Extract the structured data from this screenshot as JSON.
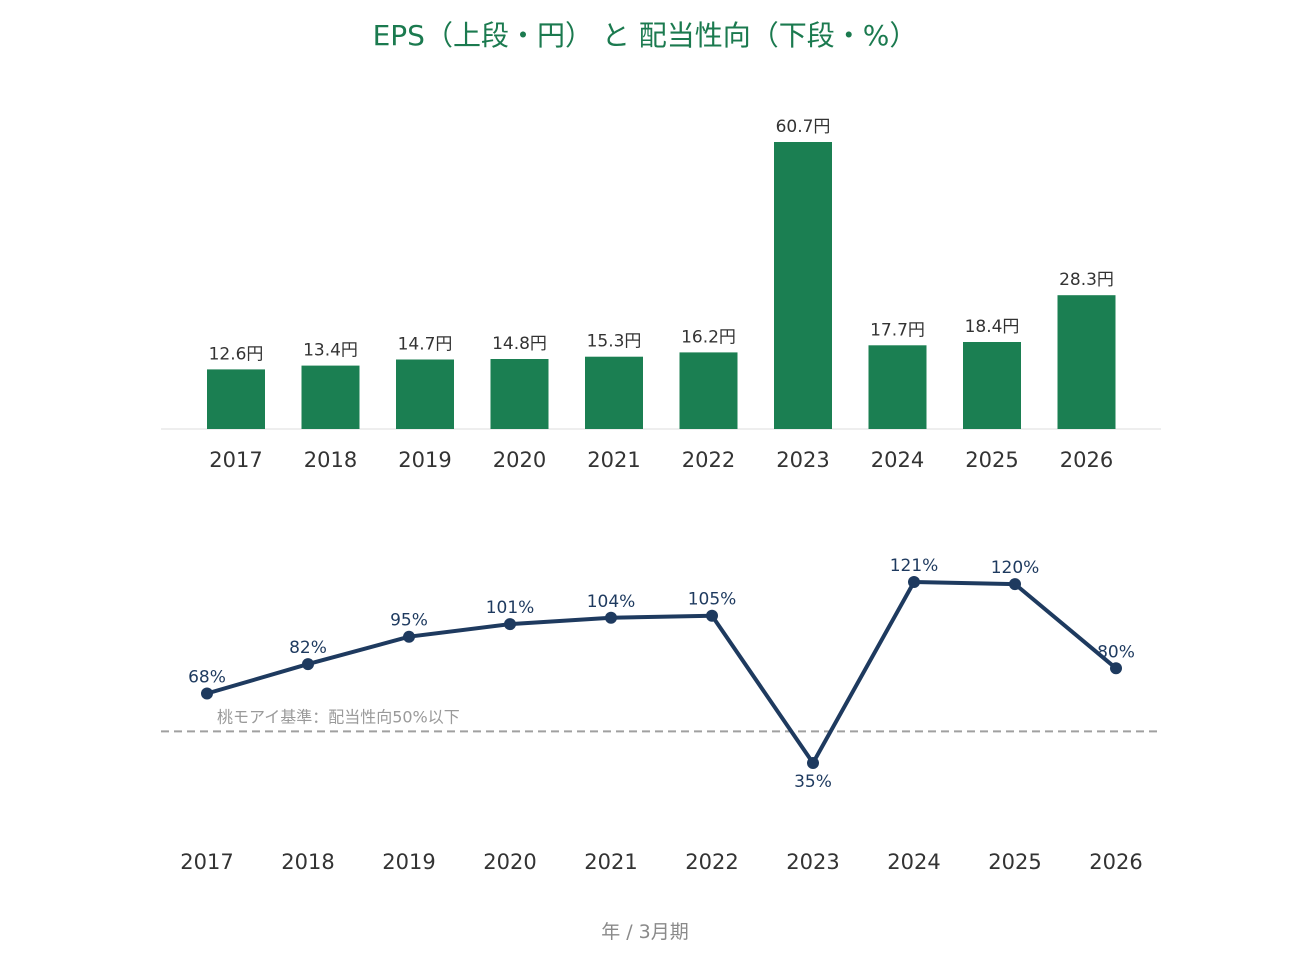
{
  "chart_data": [
    {
      "type": "bar",
      "title": "EPS（上段・円） と 配当性向（下段・%）",
      "categories": [
        "2017",
        "2018",
        "2019",
        "2020",
        "2021",
        "2022",
        "2023",
        "2024",
        "2025",
        "2026"
      ],
      "values": [
        12.6,
        13.4,
        14.7,
        14.8,
        15.3,
        16.2,
        60.7,
        17.7,
        18.4,
        28.3
      ],
      "value_labels": [
        "12.6円",
        "13.4円",
        "14.7円",
        "14.8円",
        "15.3円",
        "16.2円",
        "60.7円",
        "17.7円",
        "18.4円",
        "28.3円"
      ],
      "ylim": [
        0,
        63
      ],
      "grid": false,
      "color": "#1b7f52"
    },
    {
      "type": "line",
      "categories": [
        "2017",
        "2018",
        "2019",
        "2020",
        "2021",
        "2022",
        "2023",
        "2024",
        "2025",
        "2026"
      ],
      "values": [
        68,
        82,
        95,
        101,
        104,
        105,
        35,
        121,
        120,
        80
      ],
      "value_labels": [
        "68%",
        "82%",
        "95%",
        "101%",
        "104%",
        "105%",
        "35%",
        "121%",
        "120%",
        "80%"
      ],
      "ylim": [
        0,
        130
      ],
      "grid": false,
      "color": "#1e3a5f",
      "reference_line": {
        "value": 50,
        "label": "桃モアイ基準：配当性向50%以下",
        "color": "#a0a0a0"
      },
      "xlabel": "年 / 3月期"
    }
  ]
}
